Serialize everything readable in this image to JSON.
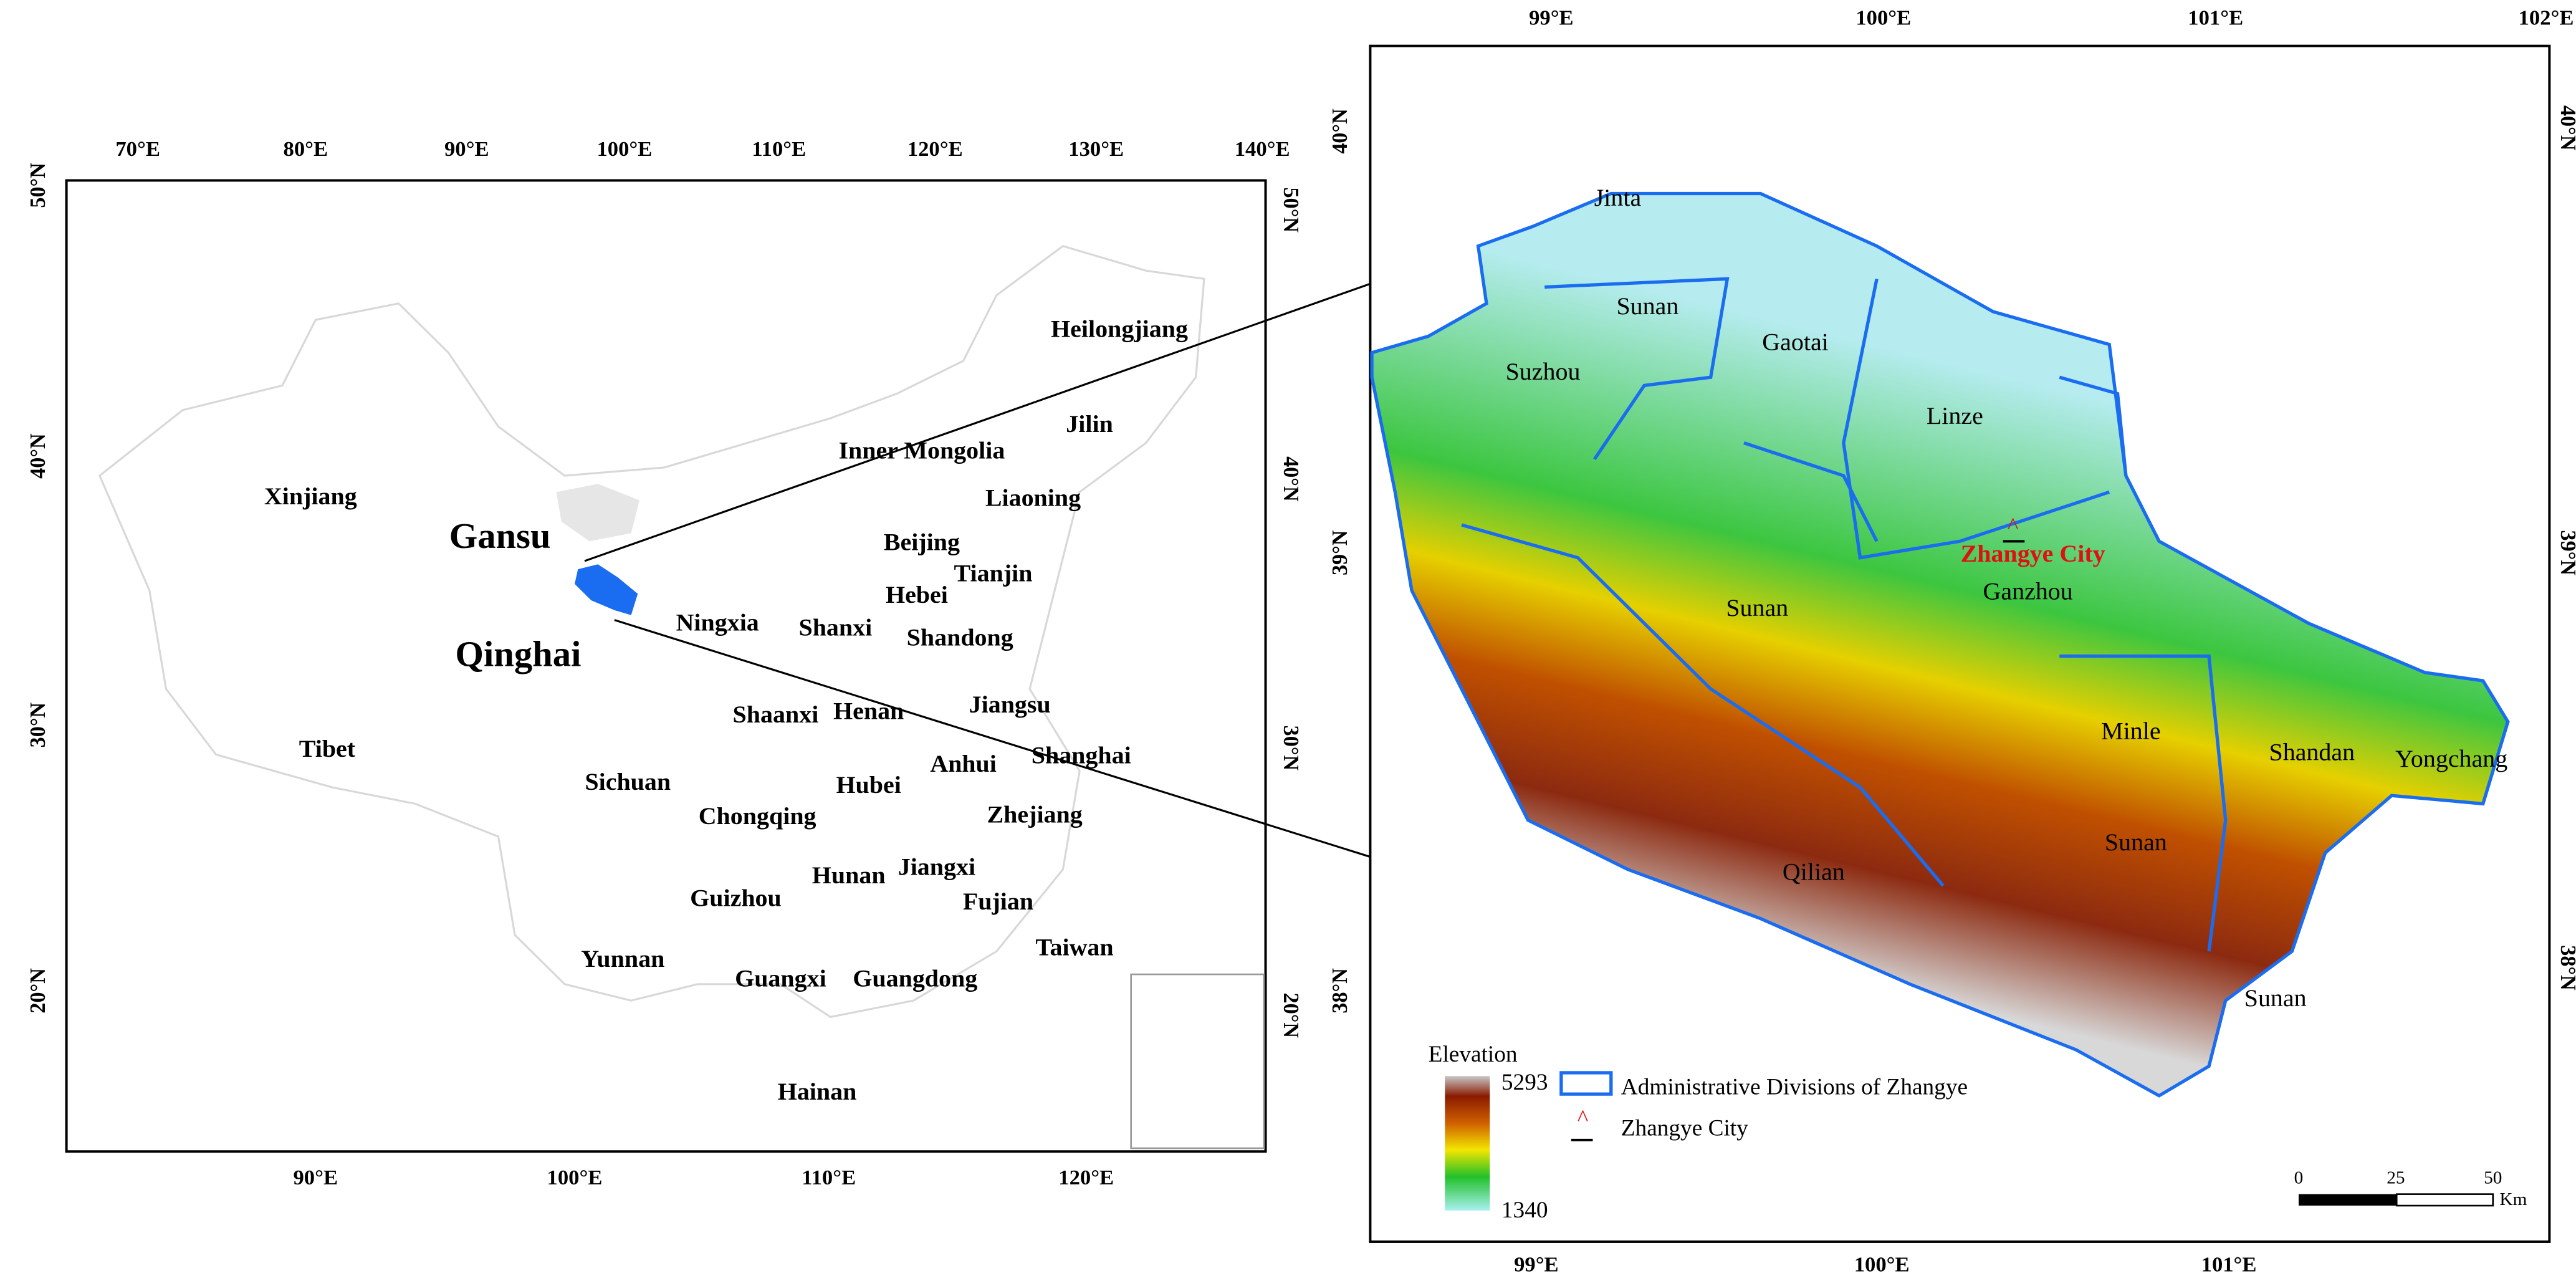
{
  "left_map": {
    "top_ticks": [
      "70°E",
      "80°E",
      "90°E",
      "100°E",
      "110°E",
      "120°E",
      "130°E",
      "140°E"
    ],
    "bottom_ticks": [
      "90°E",
      "100°E",
      "110°E",
      "120°E"
    ],
    "left_ticks": [
      "50°N",
      "40°N",
      "30°N",
      "20°N"
    ],
    "right_ticks": [
      "50°N",
      "40°N",
      "30°N",
      "20°N"
    ],
    "province_labels": [
      "Heilongjiang",
      "Jilin",
      "Inner Mongolia",
      "Liaoning",
      "Xinjiang",
      "Beijing",
      "Tianjin",
      "Hebei",
      "Ningxia",
      "Shanxi",
      "Shandong",
      "Shaanxi",
      "Henan",
      "Jiangsu",
      "Tibet",
      "Anhui",
      "Shanghai",
      "Sichuan",
      "Hubei",
      "Chongqing",
      "Zhejiang",
      "Jiangxi",
      "Hunan",
      "Guizhou",
      "Fujian",
      "Taiwan",
      "Yunnan",
      "Guangxi",
      "Guangdong",
      "Hainan"
    ],
    "highlight_labels": [
      "Gansu",
      "Qinghai"
    ]
  },
  "right_map": {
    "top_ticks": [
      "99°E",
      "100°E",
      "101°E",
      "102°E"
    ],
    "bottom_ticks": [
      "99°E",
      "100°E",
      "101°E"
    ],
    "left_ticks": [
      "40°N",
      "39°N",
      "38°N"
    ],
    "right_ticks": [
      "40°N",
      "39°N",
      "38°N"
    ],
    "county_labels": [
      "Jinta",
      "Sunan",
      "Gaotai",
      "Suzhou",
      "Linze",
      "Ganzhou",
      "Sunan",
      "Minle",
      "Shandan",
      "Yongchang",
      "Sunan",
      "Qilian",
      "Sunan"
    ],
    "city_label": "Zhangye City"
  },
  "legend": {
    "elevation_title": "Elevation",
    "max": 5293,
    "min": 1340,
    "divisions": "Administrative Divisions of Zhangye",
    "city": "Zhangye City"
  },
  "scale_bar": {
    "ticks": [
      0,
      25,
      50
    ],
    "unit": "Km"
  }
}
